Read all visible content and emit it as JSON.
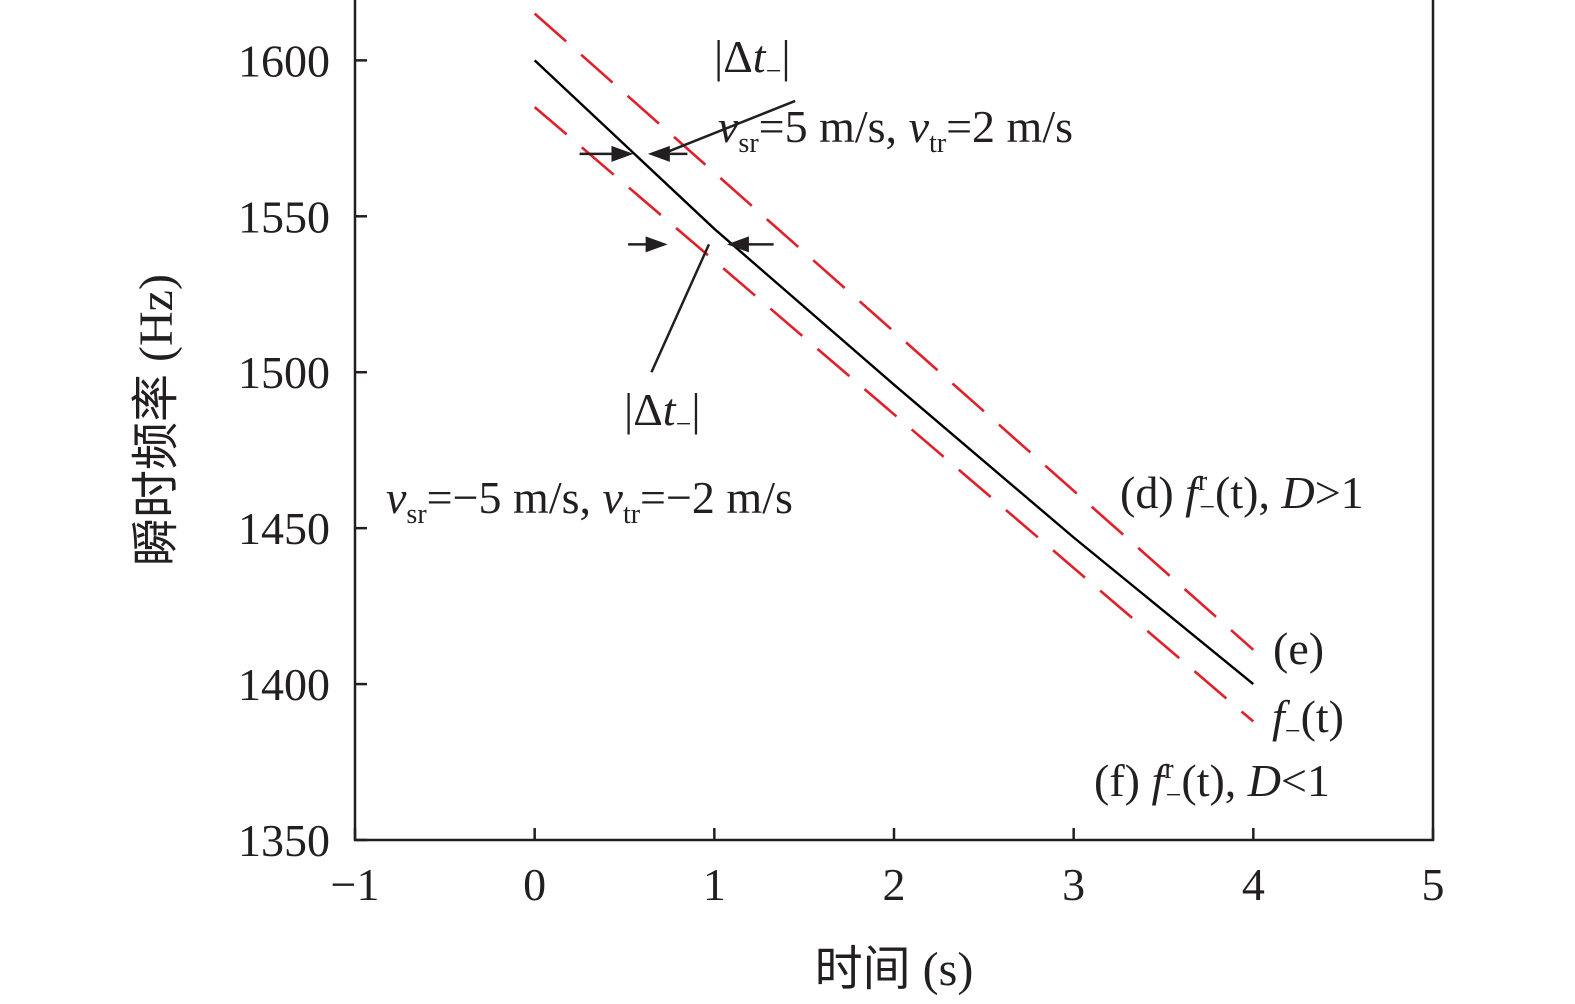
{
  "chart_data": {
    "type": "line",
    "xlabel": "时间 (s)",
    "ylabel": "瞬时频率 (Hz)",
    "xlim": [
      -1,
      5
    ],
    "ylim": [
      1350,
      1620
    ],
    "xticks": [
      -1,
      0,
      1,
      2,
      3,
      4,
      5
    ],
    "yticks": [
      1350,
      1400,
      1450,
      1500,
      1550,
      1600
    ],
    "xtick_labels": [
      "−1",
      "0",
      "1",
      "2",
      "3",
      "4",
      "5"
    ],
    "ytick_labels": [
      "1350",
      "1400",
      "1450",
      "1500",
      "1550",
      "1600"
    ],
    "grid": false,
    "series": [
      {
        "name": "f−(t)",
        "style": "solid",
        "color": "#000000",
        "x": [
          0,
          1,
          2,
          3,
          4
        ],
        "y": [
          1600,
          1546,
          1496,
          1447,
          1400
        ]
      },
      {
        "name": "(d) f r−(t), D>1",
        "style": "dashed",
        "color": "#e0202a",
        "x": [
          0,
          4
        ],
        "y": [
          1615,
          1411
        ]
      },
      {
        "name": "(f) f r−(t), D<1",
        "style": "dashed",
        "color": "#e0202a",
        "x": [
          0,
          4
        ],
        "y": [
          1585,
          1388
        ]
      }
    ],
    "annotations": {
      "delta_upper": {
        "parts": [
          "|Δ",
          "t",
          "−",
          "|"
        ],
        "line": {
          "x1": 1.45,
          "y1": 1587,
          "x2": 0.71,
          "y2": 1570
        }
      },
      "delta_lower": {
        "parts": [
          "|Δ",
          "t",
          "−",
          "|"
        ],
        "line": {
          "x1": 0.65,
          "y1": 1500,
          "x2": 0.97,
          "y2": 1541
        }
      },
      "arrow_upper": {
        "y": 1570,
        "x_left": 0.25,
        "x_right": 0.55,
        "x_left2": 0.63,
        "x_right2": 0.85
      },
      "arrow_lower": {
        "y": 1541,
        "x_left": 0.52,
        "x_right": 0.74,
        "x_left2": 1.07,
        "x_right2": 1.33
      },
      "speed_upper": {
        "v": "v",
        "sr_sub": "sr",
        "sr_val": "=5 m/s, ",
        "tr_sub": "tr",
        "tr_val": "=2 m/s"
      },
      "speed_lower": {
        "v": "v",
        "sr_sub": "sr",
        "sr_val": "=−5 m/s, ",
        "tr_sub": "tr",
        "tr_val": "=−2 m/s"
      },
      "label_d": {
        "prefix": "(d) ",
        "f": "f",
        "sup": "r",
        "sub": "−",
        "arg": "(t), ",
        "D": "D",
        "cond": ">1"
      },
      "label_e": {
        "text": "(e)"
      },
      "label_curve": {
        "f": "f",
        "sub": "−",
        "arg": "(t)"
      },
      "label_f": {
        "prefix": "(f) ",
        "f": "f",
        "sup": "r",
        "sub": "−",
        "arg": "(t), ",
        "D": "D",
        "cond": "<1"
      }
    }
  }
}
